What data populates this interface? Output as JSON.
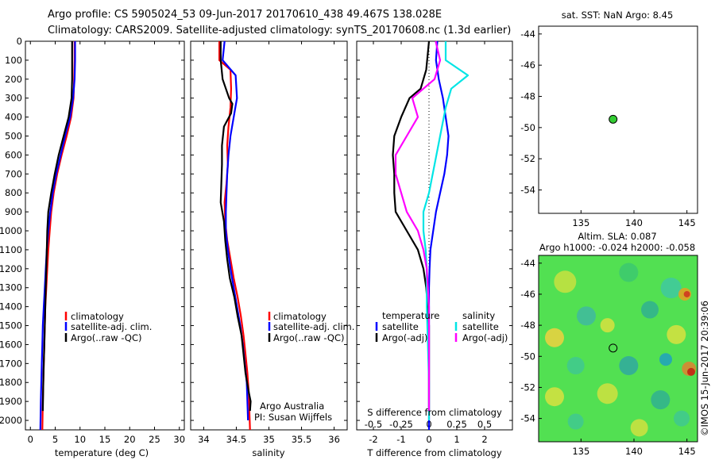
{
  "titles": {
    "line1": "Argo profile: CS 5905024_53 09-Jun-2017 20170610_438 49.467S 138.028E",
    "line2": "Climatology: CARS2009. Satellite-adjusted climatology: synTS_20170608.nc (1.3d earlier)"
  },
  "colors": {
    "climatology": "#ff0000",
    "satellite": "#0000ff",
    "argo": "#000000",
    "sal_satellite": "#00e5e5",
    "sal_argo": "#ff00ff",
    "marker": "#33cc33"
  },
  "chart_data": [
    {
      "type": "line",
      "panel": "temperature",
      "xlabel": "temperature (deg C)",
      "ylim": [
        2050,
        0
      ],
      "xlim": [
        -1,
        31
      ],
      "xticks": [
        "0",
        "5",
        "10",
        "15",
        "20",
        "25",
        "30"
      ],
      "yticks": [
        "0",
        "100",
        "200",
        "300",
        "400",
        "500",
        "600",
        "700",
        "800",
        "900",
        "1000",
        "1100",
        "1200",
        "1300",
        "1400",
        "1500",
        "1600",
        "1700",
        "1800",
        "1900",
        "2000"
      ],
      "legend": [
        "climatology",
        "satellite-adj. clim.",
        "Argo(..raw -QC)"
      ],
      "series": [
        {
          "name": "climatology",
          "x": [
            8.9,
            8.9,
            8.8,
            8.7,
            8.2,
            7.3,
            6.3,
            5.4,
            4.7,
            4.2,
            3.9,
            3.6,
            3.4,
            3.2,
            3.0,
            2.9,
            2.8,
            2.7,
            2.6,
            2.5,
            2.4
          ],
          "y": [
            0,
            100,
            200,
            300,
            400,
            500,
            600,
            700,
            800,
            900,
            1000,
            1100,
            1200,
            1300,
            1400,
            1500,
            1600,
            1700,
            1800,
            1900,
            2050
          ]
        },
        {
          "name": "satellite-adj. clim.",
          "x": [
            9.0,
            9.0,
            8.9,
            8.6,
            8.0,
            7.0,
            6.1,
            5.2,
            4.5,
            4.0,
            3.6,
            3.3,
            3.1,
            2.9,
            2.7,
            2.5,
            2.4,
            2.3,
            2.2,
            2.1,
            2.0
          ],
          "y": [
            0,
            100,
            200,
            300,
            400,
            500,
            600,
            700,
            800,
            900,
            1000,
            1100,
            1200,
            1300,
            1400,
            1500,
            1600,
            1700,
            1800,
            1900,
            2050
          ]
        },
        {
          "name": "Argo(..raw -QC)",
          "x": [
            8.4,
            8.4,
            8.4,
            8.3,
            7.7,
            6.7,
            5.7,
            4.9,
            4.2,
            3.6,
            3.4,
            3.3,
            3.2,
            3.1,
            3.0,
            2.9,
            2.8,
            2.7,
            2.6,
            2.5
          ],
          "y": [
            0,
            100,
            200,
            300,
            400,
            500,
            600,
            700,
            800,
            900,
            1000,
            1100,
            1200,
            1300,
            1400,
            1500,
            1600,
            1700,
            1800,
            1950
          ]
        }
      ]
    },
    {
      "type": "line",
      "panel": "salinity",
      "xlabel": "salinity",
      "ylim": [
        2050,
        0
      ],
      "xlim": [
        33.8,
        36.2
      ],
      "xticks": [
        "34",
        "34.5",
        "35",
        "35.5",
        "36"
      ],
      "legend": [
        "climatology",
        "satellite-adj. clim.",
        "Argo(..raw -QC)"
      ],
      "series": [
        {
          "name": "climatology",
          "x": [
            34.24,
            34.24,
            34.41,
            34.42,
            34.41,
            34.38,
            34.36,
            34.37,
            34.35,
            34.32,
            34.33,
            34.36,
            34.41,
            34.46,
            34.52,
            34.57,
            34.61,
            34.64,
            34.67,
            34.69,
            34.71
          ],
          "y": [
            0,
            100,
            150,
            250,
            350,
            450,
            550,
            650,
            750,
            850,
            950,
            1050,
            1150,
            1250,
            1350,
            1450,
            1550,
            1650,
            1750,
            1850,
            2050
          ]
        },
        {
          "name": "satellite-adj. clim.",
          "x": [
            34.32,
            34.29,
            34.49,
            34.51,
            34.46,
            34.41,
            34.38,
            34.36,
            34.35,
            34.34,
            34.34,
            34.37,
            34.41,
            34.46,
            34.51,
            34.56,
            34.6,
            34.63,
            34.66,
            34.67,
            34.68
          ],
          "y": [
            0,
            100,
            180,
            300,
            400,
            500,
            600,
            700,
            800,
            900,
            1000,
            1100,
            1200,
            1300,
            1400,
            1500,
            1600,
            1700,
            1800,
            1900,
            2000
          ]
        },
        {
          "name": "Argo(..raw -QC)",
          "x": [
            34.26,
            34.26,
            34.29,
            34.39,
            34.44,
            34.42,
            34.31,
            34.28,
            34.28,
            34.27,
            34.26,
            34.31,
            34.33,
            34.36,
            34.4,
            34.47,
            34.52,
            34.58,
            34.61,
            34.64,
            34.69,
            34.72,
            34.71
          ],
          "y": [
            0,
            100,
            200,
            300,
            330,
            380,
            450,
            550,
            650,
            750,
            850,
            950,
            1050,
            1150,
            1250,
            1350,
            1450,
            1550,
            1650,
            1750,
            1850,
            1900,
            1950
          ]
        }
      ]
    },
    {
      "type": "line",
      "panel": "difference",
      "xlabel": "T difference from climatology",
      "xlabel_top": "S difference from climatology",
      "ylim": [
        2050,
        0
      ],
      "xlim": [
        -2.6,
        3.0
      ],
      "xticks": [
        "-2",
        "-1",
        "0",
        "1",
        "2"
      ],
      "xticks_top": [
        "-0.5",
        "-0.25",
        "0",
        "0.25",
        "0.5"
      ],
      "legend": {
        "temperature_title": "temperature",
        "salinity_title": "salinity",
        "items": [
          "satellite",
          "Argo(-adj)",
          "satellite",
          "Argo(-adj)"
        ]
      },
      "series": [
        {
          "name": "temperature satellite",
          "x": [
            0.3,
            0.25,
            0.35,
            0.5,
            0.6,
            0.7,
            0.65,
            0.55,
            0.4,
            0.25,
            0.15,
            0.05,
            0.02,
            0.0,
            0.0,
            0.0,
            0.0,
            0.0,
            0.0
          ],
          "y": [
            0,
            100,
            200,
            300,
            400,
            500,
            600,
            700,
            800,
            900,
            1000,
            1100,
            1200,
            1300,
            1400,
            1500,
            1600,
            1800,
            2050
          ]
        },
        {
          "name": "temperature Argo(-adj)",
          "x": [
            0.0,
            -0.1,
            -0.3,
            -0.7,
            -1.0,
            -1.25,
            -1.3,
            -1.25,
            -1.25,
            -1.2,
            -0.8,
            -0.4,
            -0.2,
            -0.1,
            -0.05,
            0.0,
            0.0,
            0.0
          ],
          "y": [
            0,
            150,
            250,
            300,
            400,
            500,
            600,
            700,
            800,
            900,
            1000,
            1100,
            1200,
            1300,
            1400,
            1500,
            1700,
            1950
          ]
        },
        {
          "name": "salinity satellite",
          "x": [
            0.15,
            0.15,
            0.35,
            0.2,
            0.15,
            0.1,
            0.05,
            0.0,
            -0.05,
            -0.05,
            -0.03,
            -0.02,
            -0.02,
            -0.01,
            0.0,
            0.0,
            0.0
          ],
          "y": [
            0,
            100,
            180,
            250,
            350,
            500,
            650,
            800,
            900,
            1000,
            1100,
            1200,
            1400,
            1600,
            1800,
            1900,
            2000
          ]
        },
        {
          "name": "salinity Argo(-adj)",
          "x": [
            0.06,
            0.1,
            0.05,
            -0.15,
            -0.1,
            -0.2,
            -0.3,
            -0.3,
            -0.25,
            -0.2,
            -0.1,
            -0.05,
            -0.02,
            0.0,
            0.0,
            0.0
          ],
          "y": [
            0,
            100,
            200,
            300,
            400,
            500,
            600,
            700,
            800,
            900,
            1000,
            1100,
            1200,
            1400,
            1700,
            1950
          ]
        }
      ]
    },
    {
      "type": "scatter",
      "panel": "sst_map",
      "title": "sat. SST: NaN Argo: 8.45",
      "xlim": [
        131,
        146
      ],
      "ylim": [
        -55.5,
        -43.5
      ],
      "xticks": [
        "135",
        "140",
        "145"
      ],
      "yticks": [
        "-44",
        "-46",
        "-48",
        "-50",
        "-52",
        "-54"
      ],
      "points": [
        {
          "x": 138.028,
          "y": -49.467
        }
      ]
    },
    {
      "type": "heatmap",
      "panel": "sla_map",
      "title_line1": "Altim. SLA: 0.087",
      "title_line2": "Argo h1000: -0.024 h2000: -0.058",
      "xlim": [
        131,
        146
      ],
      "ylim": [
        -55.5,
        -43.5
      ],
      "xticks": [
        "135",
        "140",
        "145"
      ],
      "yticks": [
        "-44",
        "-46",
        "-48",
        "-50",
        "-52",
        "-54"
      ],
      "points": [
        {
          "x": 138.028,
          "y": -49.467
        }
      ]
    }
  ],
  "annotations": {
    "argo_australia": "Argo Australia",
    "pi": "PI: Susan Wijffels",
    "credit": "©IMOS 15-Jun-2017 20:39:06"
  }
}
